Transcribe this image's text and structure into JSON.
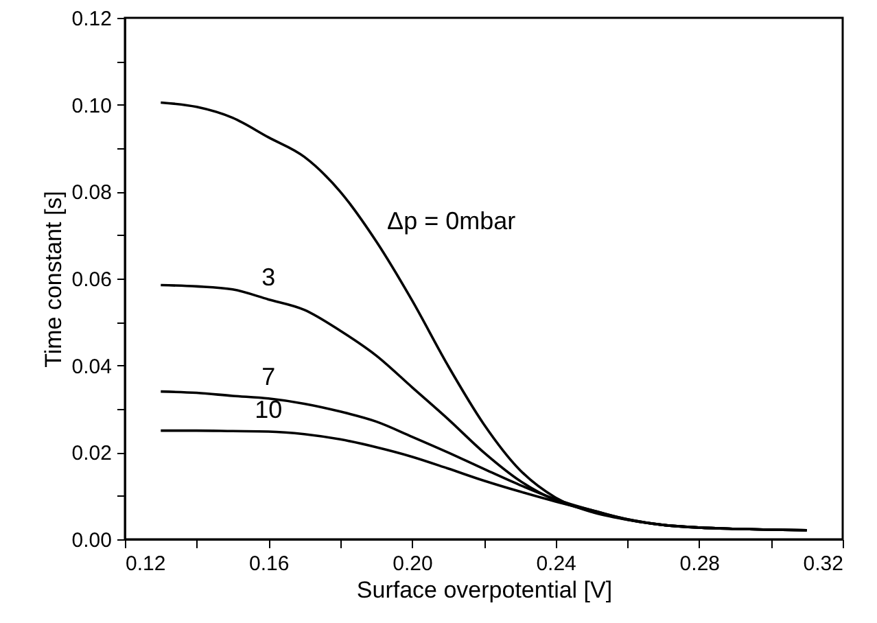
{
  "chart_data": {
    "type": "line",
    "xlabel": "Surface overpotential [V]",
    "ylabel": "Time constant [s]",
    "x": [
      0.13,
      0.14,
      0.15,
      0.16,
      0.17,
      0.18,
      0.19,
      0.2,
      0.21,
      0.22,
      0.23,
      0.24,
      0.25,
      0.26,
      0.27,
      0.28,
      0.29,
      0.3,
      0.31
    ],
    "series": [
      {
        "name": "Δp = 0mbar",
        "color": "#000000",
        "values": [
          0.1005,
          0.0995,
          0.097,
          0.0925,
          0.088,
          0.08,
          0.0686,
          0.055,
          0.04,
          0.0265,
          0.016,
          0.0096,
          0.0063,
          0.0045,
          0.0033,
          0.0027,
          0.0024,
          0.0022,
          0.0021
        ]
      },
      {
        "name": "3",
        "color": "#000000",
        "values": [
          0.0585,
          0.0582,
          0.0575,
          0.0552,
          0.0528,
          0.048,
          0.0423,
          0.035,
          0.0277,
          0.02,
          0.0135,
          0.009,
          0.0065,
          0.0045,
          0.0033,
          0.0027,
          0.0024,
          0.0022,
          0.0021
        ]
      },
      {
        "name": "7",
        "color": "#000000",
        "values": [
          0.034,
          0.0337,
          0.033,
          0.0324,
          0.0312,
          0.0294,
          0.0271,
          0.0236,
          0.02,
          0.0162,
          0.0125,
          0.0092,
          0.0067,
          0.0046,
          0.0033,
          0.0027,
          0.0024,
          0.0022,
          0.0021
        ]
      },
      {
        "name": "10",
        "color": "#000000",
        "values": [
          0.025,
          0.025,
          0.0249,
          0.0248,
          0.0242,
          0.023,
          0.0212,
          0.019,
          0.0163,
          0.0135,
          0.011,
          0.0087,
          0.0067,
          0.0046,
          0.0033,
          0.0027,
          0.0024,
          0.0022,
          0.0021
        ]
      }
    ],
    "xlim": [
      0.12,
      0.32
    ],
    "ylim": [
      0,
      0.12
    ],
    "xticks": [
      0.12,
      {
        "value": 0.14,
        "label": null
      },
      0.16,
      {
        "value": 0.18,
        "label": null
      },
      {
        "value": 0.2,
        "label": "0.20"
      },
      {
        "value": 0.22,
        "label": null
      },
      0.24,
      {
        "value": 0.26,
        "label": null
      },
      0.28,
      {
        "value": 0.3,
        "label": null
      },
      0.32
    ],
    "yticks": [
      {
        "value": 0,
        "label": "0.00"
      },
      {
        "value": 0.01,
        "label": null
      },
      0.02,
      {
        "value": 0.03,
        "label": null
      },
      0.04,
      {
        "value": 0.05,
        "label": null
      },
      0.06,
      {
        "value": 0.07,
        "label": null
      },
      0.08,
      {
        "value": 0.09,
        "label": null
      },
      {
        "value": 0.1,
        "label": "0.10"
      },
      {
        "value": 0.11,
        "label": null
      },
      0.12
    ],
    "legend": false,
    "grid": false
  }
}
